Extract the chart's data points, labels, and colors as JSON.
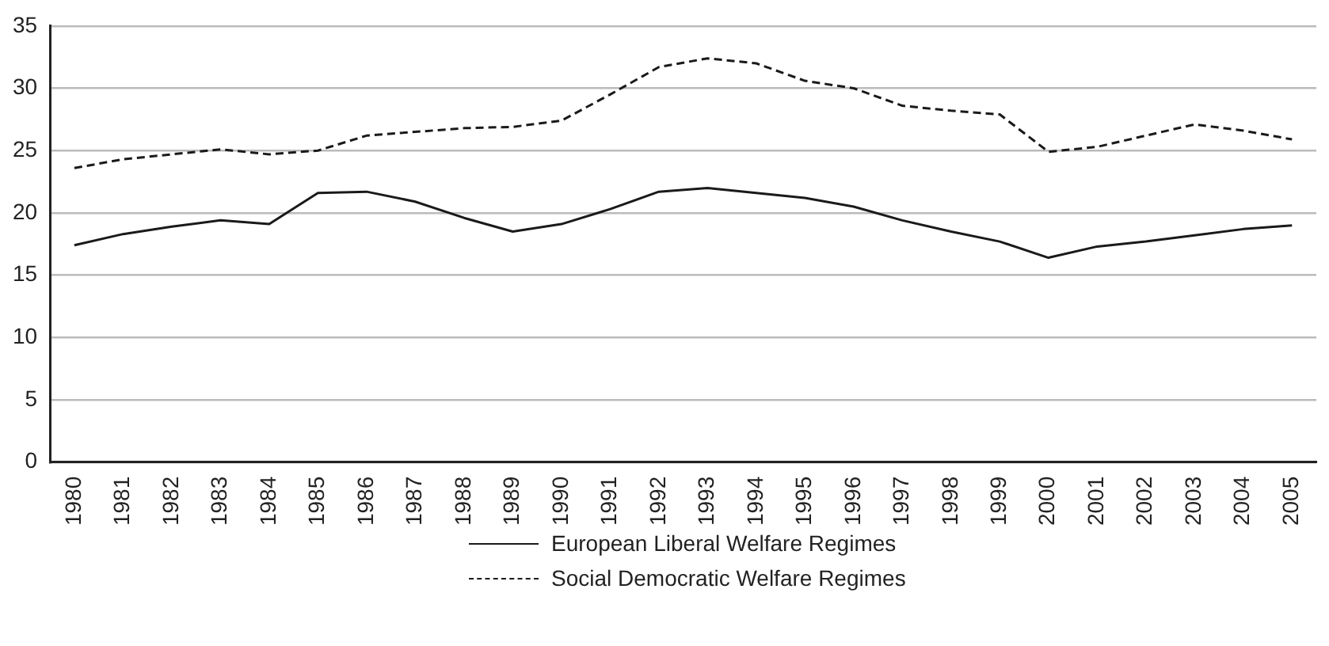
{
  "chart_data": {
    "type": "line",
    "categories": [
      "1980",
      "1981",
      "1982",
      "1983",
      "1984",
      "1985",
      "1986",
      "1987",
      "1988",
      "1989",
      "1990",
      "1991",
      "1992",
      "1993",
      "1994",
      "1995",
      "1996",
      "1997",
      "1998",
      "1999",
      "2000",
      "2001",
      "2002",
      "2003",
      "2004",
      "2005"
    ],
    "series": [
      {
        "name": "European Liberal Welfare Regimes",
        "color": "#1a1a1a",
        "line_style": "solid",
        "values": [
          17.4,
          18.3,
          18.9,
          19.4,
          19.1,
          21.6,
          21.7,
          20.9,
          19.6,
          18.5,
          19.1,
          20.3,
          21.7,
          22.0,
          21.6,
          21.2,
          20.5,
          19.4,
          18.5,
          17.7,
          16.4,
          17.3,
          17.7,
          18.2,
          18.7,
          19.0
        ]
      },
      {
        "name": "Social Democratic Welfare Regimes",
        "color": "#1a1a1a",
        "line_style": "dashed",
        "values": [
          23.6,
          24.3,
          24.7,
          25.1,
          24.7,
          25.0,
          26.2,
          26.5,
          26.8,
          26.9,
          27.4,
          29.5,
          31.7,
          32.4,
          32.0,
          30.6,
          30.0,
          28.6,
          28.2,
          27.9,
          24.9,
          25.3,
          26.2,
          27.1,
          26.6,
          25.9
        ]
      }
    ],
    "ylim": [
      0,
      35
    ],
    "yticks": [
      0,
      5,
      10,
      15,
      20,
      25,
      30,
      35
    ],
    "grid": "y",
    "legend": "bottom",
    "marker": "none"
  }
}
